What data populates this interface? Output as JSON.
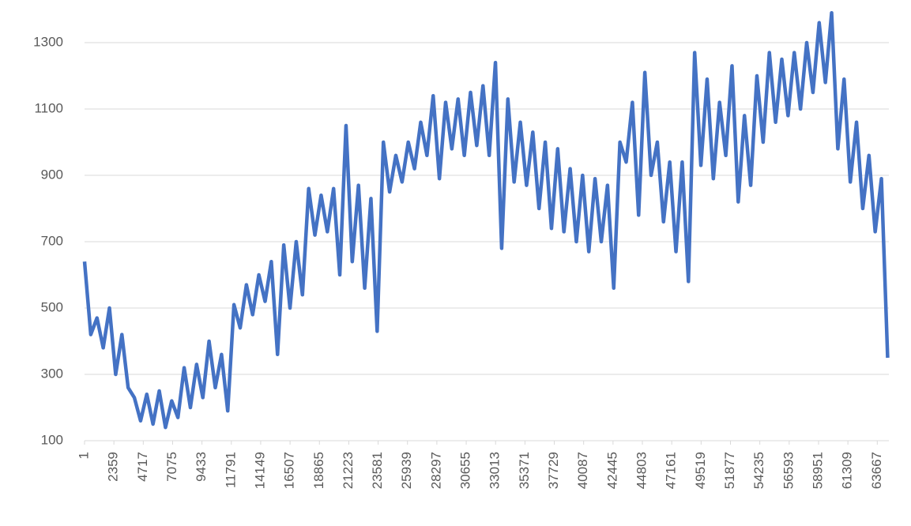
{
  "chart_data": {
    "type": "line",
    "x": [
      1,
      501,
      1001,
      1501,
      2001,
      2501,
      3001,
      3501,
      4001,
      4501,
      5001,
      5501,
      6001,
      6501,
      7001,
      7501,
      8001,
      8501,
      9001,
      9501,
      10001,
      10501,
      11001,
      11501,
      12001,
      12501,
      13001,
      13501,
      14001,
      14501,
      15001,
      15501,
      16001,
      16501,
      17001,
      17501,
      18001,
      18501,
      19001,
      19501,
      20001,
      20501,
      21001,
      21501,
      22001,
      22501,
      23001,
      23501,
      24001,
      24501,
      25001,
      25501,
      26001,
      26501,
      27001,
      27501,
      28001,
      28501,
      29001,
      29501,
      30001,
      30501,
      31001,
      31501,
      32001,
      32501,
      33001,
      33501,
      34001,
      34501,
      35001,
      35501,
      36001,
      36501,
      37001,
      37501,
      38001,
      38501,
      39001,
      39501,
      40001,
      40501,
      41001,
      41501,
      42001,
      42501,
      43001,
      43501,
      44001,
      44501,
      45001,
      45501,
      46001,
      46501,
      47001,
      47501,
      48001,
      48501,
      49001,
      49501,
      50001,
      50501,
      51001,
      51501,
      52001,
      52501,
      53001,
      53501,
      54001,
      54501,
      55001,
      55501,
      56001,
      56501,
      57001,
      57501,
      58001,
      58501,
      59001,
      59501,
      60001,
      60501,
      61001,
      61501,
      62001,
      62501,
      63001,
      63501,
      64001,
      64501
    ],
    "series": [
      {
        "color": "#4472c4",
        "values": [
          640,
          420,
          470,
          380,
          500,
          300,
          420,
          260,
          230,
          160,
          240,
          150,
          250,
          140,
          220,
          170,
          320,
          200,
          330,
          230,
          400,
          260,
          360,
          190,
          510,
          440,
          570,
          480,
          600,
          520,
          640,
          360,
          690,
          500,
          700,
          540,
          860,
          720,
          840,
          730,
          860,
          600,
          1050,
          640,
          870,
          560,
          830,
          430,
          1000,
          850,
          960,
          880,
          1000,
          920,
          1060,
          960,
          1140,
          890,
          1120,
          980,
          1130,
          960,
          1150,
          990,
          1170,
          960,
          1240,
          680,
          1130,
          880,
          1060,
          870,
          1030,
          800,
          1000,
          740,
          980,
          730,
          920,
          700,
          900,
          670,
          890,
          700,
          870,
          560,
          1000,
          940,
          1120,
          780,
          1210,
          900,
          1000,
          760,
          940,
          670,
          940,
          580,
          1270,
          930,
          1190,
          890,
          1120,
          960,
          1230,
          820,
          1080,
          870,
          1200,
          1000,
          1270,
          1060,
          1250,
          1080,
          1270,
          1100,
          1300,
          1150,
          1360,
          1180,
          1390,
          980,
          1190,
          880,
          1060,
          800,
          960,
          730,
          890,
          350
        ]
      }
    ],
    "xlim": [
      1,
      64600
    ],
    "xticks": [
      1,
      2359,
      4717,
      7075,
      9433,
      11791,
      14149,
      16507,
      18865,
      21223,
      23581,
      25939,
      28297,
      30655,
      33013,
      35371,
      37729,
      40087,
      42445,
      44803,
      47161,
      49519,
      51877,
      54235,
      56593,
      58951,
      61309,
      63667
    ],
    "ylim": [
      100,
      1400
    ],
    "yticks": [
      100,
      300,
      500,
      700,
      900,
      1100,
      1300
    ],
    "grid": true
  }
}
